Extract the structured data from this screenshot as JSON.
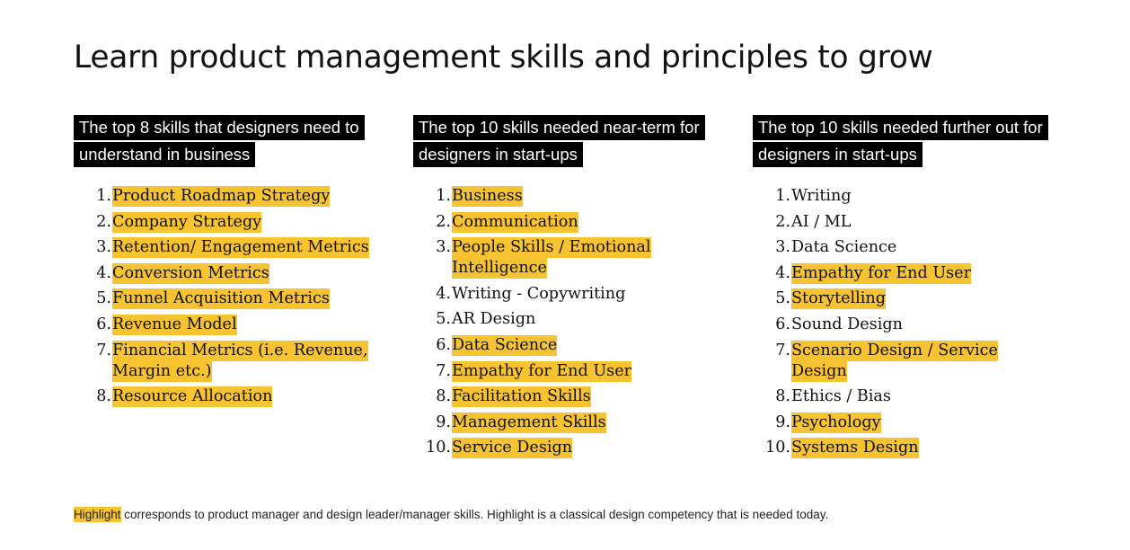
{
  "title": "Learn product management skills and principles to grow",
  "colors": {
    "highlight": "#f7c331",
    "heading_bg": "#000000",
    "heading_text": "#ffffff",
    "text": "#111111"
  },
  "columns": [
    {
      "heading": "The top 8 skills that designers need to understand in business",
      "items": [
        {
          "num": "1.",
          "label": "Product Roadmap Strategy",
          "highlighted": true
        },
        {
          "num": "2.",
          "label": "Company Strategy",
          "highlighted": true
        },
        {
          "num": "3.",
          "label": "Retention/ Engagement Metrics",
          "highlighted": true
        },
        {
          "num": "4.",
          "label": "Conversion Metrics",
          "highlighted": true
        },
        {
          "num": "5.",
          "label": "Funnel Acquisition Metrics",
          "highlighted": true
        },
        {
          "num": "6.",
          "label": "Revenue Model",
          "highlighted": true
        },
        {
          "num": "7.",
          "label": "Financial Metrics (i.e. Revenue, Margin etc.)",
          "highlighted": true
        },
        {
          "num": "8.",
          "label": "Resource Allocation",
          "highlighted": true
        }
      ]
    },
    {
      "heading": "The top 10 skills needed near-term for designers in start-ups",
      "items": [
        {
          "num": "1.",
          "label": "Business",
          "highlighted": true
        },
        {
          "num": "2.",
          "label": "Communication",
          "highlighted": true
        },
        {
          "num": "3.",
          "label": "People Skills / Emotional Intelligence",
          "highlighted": true
        },
        {
          "num": "4.",
          "label": "Writing - Copywriting",
          "highlighted": false
        },
        {
          "num": "5.",
          "label": "AR Design",
          "highlighted": false
        },
        {
          "num": "6.",
          "label": "Data Science",
          "highlighted": true
        },
        {
          "num": "7.",
          "label": "Empathy for End User",
          "highlighted": true
        },
        {
          "num": "8.",
          "label": "Facilitation Skills",
          "highlighted": true
        },
        {
          "num": "9.",
          "label": "Management Skills",
          "highlighted": true
        },
        {
          "num": "10.",
          "label": "Service Design",
          "highlighted": true
        }
      ]
    },
    {
      "heading": "The top 10 skills needed further out for designers in start-ups",
      "items": [
        {
          "num": "1.",
          "label": "Writing",
          "highlighted": false
        },
        {
          "num": "2.",
          "label": "AI / ML",
          "highlighted": false
        },
        {
          "num": "3.",
          "label": "Data Science",
          "highlighted": false
        },
        {
          "num": "4.",
          "label": "Empathy for End User",
          "highlighted": true
        },
        {
          "num": "5.",
          "label": "Storytelling",
          "highlighted": true
        },
        {
          "num": "6.",
          "label": "Sound Design",
          "highlighted": false
        },
        {
          "num": "7.",
          "label": "Scenario Design / Service Design",
          "highlighted": true
        },
        {
          "num": "8.",
          "label": "Ethics / Bias",
          "highlighted": false
        },
        {
          "num": "9.",
          "label": "Psychology",
          "highlighted": true
        },
        {
          "num": "10.",
          "label": "Systems Design",
          "highlighted": true
        }
      ]
    }
  ],
  "footnote": {
    "highlight_word": "Highlight",
    "rest": " corresponds to product manager and design leader/manager skills. Highlight is a classical design competency that is needed today."
  }
}
